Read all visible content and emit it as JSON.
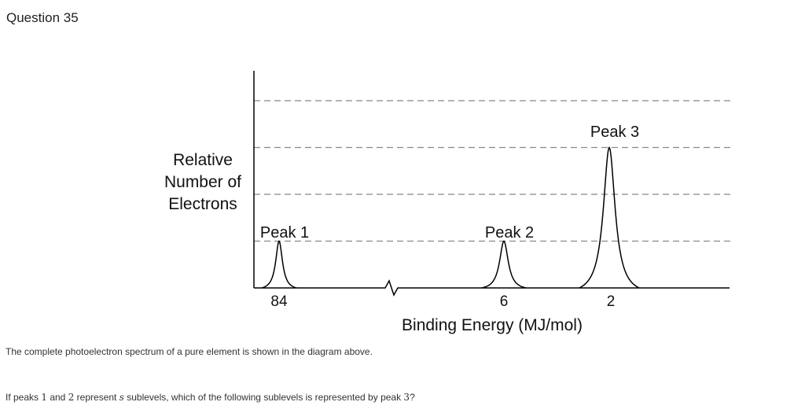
{
  "question": {
    "title": "Question 35",
    "caption": "The complete photoelectron spectrum of a pure element is shown in the diagram above.",
    "prompt_parts": [
      "If peaks ",
      "1",
      " and ",
      "2",
      " represent ",
      "s",
      " sublevels, which of the following sublevels is represented by peak ",
      "3",
      "?"
    ]
  },
  "chart_data": {
    "type": "line",
    "title": "",
    "xlabel": "Binding Energy (MJ/mol)",
    "ylabel": "Relative Number of Electrons",
    "ylabel_lines": [
      "Relative",
      "Number of",
      "Electrons"
    ],
    "x_ticks": [
      "84",
      "6",
      "2"
    ],
    "x_axis_break": true,
    "x_direction": "decreasing",
    "y_range": [
      0,
      4
    ],
    "gridlines": [
      1,
      2,
      3,
      4
    ],
    "grid_style": "dashed",
    "peaks": [
      {
        "label": "Peak 1",
        "binding_energy": 84,
        "relative_electrons": 1
      },
      {
        "label": "Peak 2",
        "binding_energy": 6,
        "relative_electrons": 1
      },
      {
        "label": "Peak 3",
        "binding_energy": 2,
        "relative_electrons": 3
      }
    ],
    "colors": {
      "axis": "#000000",
      "grid": "#888888",
      "curve": "#000000"
    }
  }
}
